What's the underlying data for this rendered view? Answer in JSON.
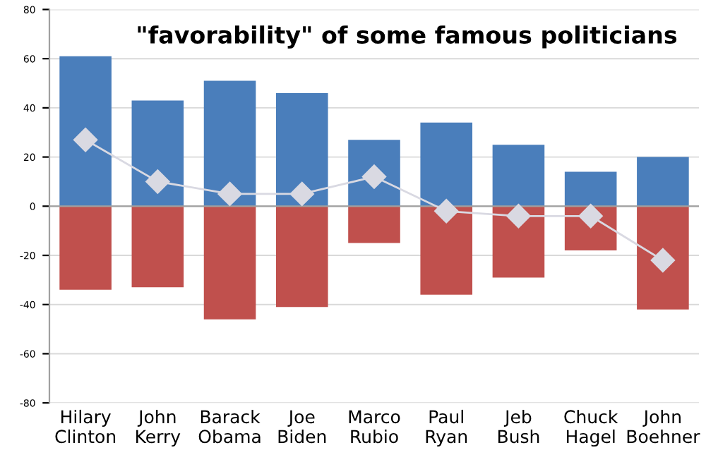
{
  "chart_data": {
    "type": "bar",
    "title": "\"favorability\" of some famous politicians",
    "stacked": true,
    "categories": [
      "Hilary\nClinton",
      "John\nKerry",
      "Barack\nObama",
      "Joe\nBiden",
      "Marco\nRubio",
      "Paul\nRyan",
      "Jeb\nBush",
      "Chuck\nHagel",
      "John\nBoehner"
    ],
    "series": [
      {
        "color": "#4a7ebb",
        "values": [
          61,
          43,
          51,
          46,
          27,
          34,
          25,
          14,
          20
        ]
      },
      {
        "color": "#c0504d",
        "values": [
          -34,
          -33,
          -46,
          -41,
          -15,
          -36,
          -29,
          -18,
          -42
        ]
      },
      {
        "type": "line",
        "color": "#d9d9e2",
        "marker": "diamond",
        "values": [
          27,
          10,
          5,
          5,
          12,
          -2,
          -4,
          -4,
          -22
        ]
      }
    ],
    "ylim": [
      -80,
      80
    ],
    "yticks": [
      -80,
      -60,
      -40,
      -20,
      0,
      20,
      40,
      60,
      80
    ],
    "grid": "y"
  }
}
